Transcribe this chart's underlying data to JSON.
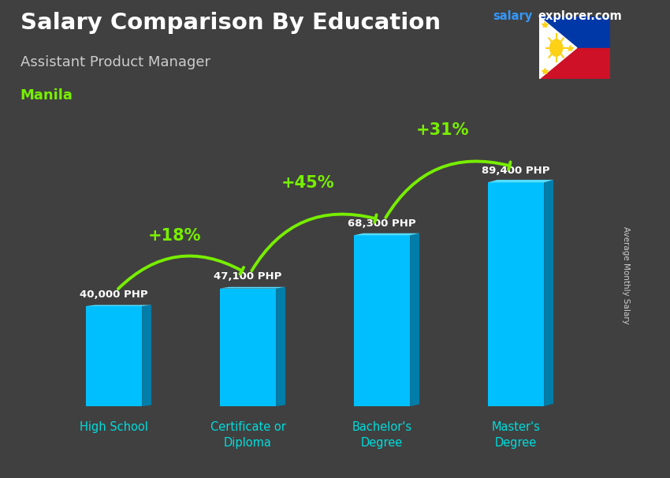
{
  "title": "Salary Comparison By Education",
  "subtitle": "Assistant Product Manager",
  "city": "Manila",
  "ylabel": "Average Monthly Salary",
  "categories": [
    "High School",
    "Certificate or\nDiploma",
    "Bachelor's\nDegree",
    "Master's\nDegree"
  ],
  "values": [
    40000,
    47100,
    68300,
    89400
  ],
  "value_labels": [
    "40,000 PHP",
    "47,100 PHP",
    "68,300 PHP",
    "89,400 PHP"
  ],
  "pct_changes": [
    "+18%",
    "+45%",
    "+31%"
  ],
  "bar_color_face": "#00BFFF",
  "bar_color_dark": "#007DA8",
  "bar_color_top": "#55DDFF",
  "bg_color": "#404040",
  "title_color": "#FFFFFF",
  "subtitle_color": "#CCCCCC",
  "city_color": "#77EE00",
  "label_color": "#FFFFFF",
  "xlabel_color": "#00DDDD",
  "pct_color": "#77EE00",
  "ylabel_color": "#CCCCCC",
  "brand_color_salary": "#3399FF",
  "brand_color_explorer": "#FFFFFF",
  "arrow_color": "#77EE00",
  "ylim": 105000,
  "bar_width": 0.42
}
